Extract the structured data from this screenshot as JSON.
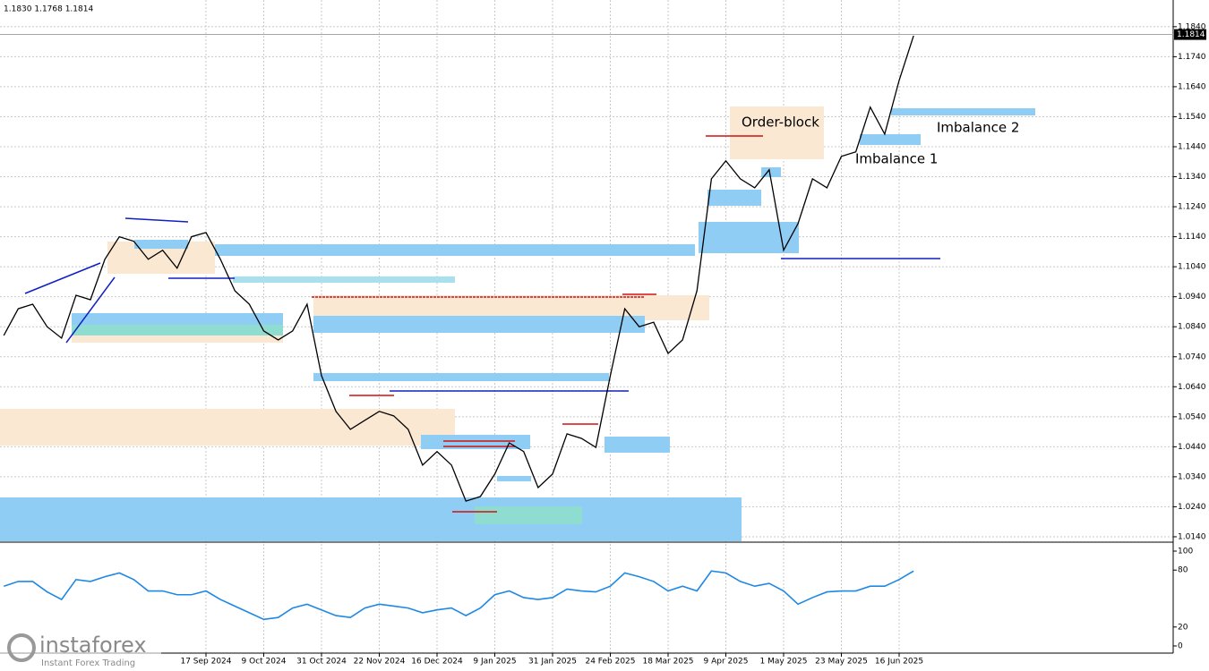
{
  "chart_data": [
    {
      "type": "line",
      "title": "1.1830 1.1768 1.1814",
      "annotations": [
        "Order-block",
        "Imbalance 1",
        "Imbalance 2"
      ],
      "watermark": "instaforex",
      "watermark_sub": "Instant Forex Trading",
      "categories": [
        null,
        null,
        null,
        null,
        null,
        null,
        null,
        null,
        null,
        null,
        null,
        null,
        null,
        null,
        "17 Sep 2024",
        null,
        null,
        null,
        "9 Oct 2024",
        null,
        null,
        null,
        "31 Oct 2024",
        null,
        null,
        null,
        "22 Nov 2024",
        null,
        null,
        null,
        "16 Dec 2024",
        null,
        null,
        null,
        "9 Jan 2025",
        null,
        null,
        null,
        "31 Jan 2025",
        null,
        null,
        null,
        "24 Feb 2025",
        null,
        null,
        null,
        "18 Mar 2025",
        null,
        null,
        null,
        "9 Apr 2025",
        null,
        null,
        null,
        "1 May 2025",
        null,
        null,
        null,
        "23 May 2025",
        null,
        null,
        null,
        "16 Jun 2025",
        null
      ],
      "values": [
        1.0811,
        1.09,
        1.0915,
        1.084,
        1.0802,
        1.0945,
        1.093,
        1.1065,
        1.114,
        1.1125,
        1.1065,
        1.1095,
        1.1035,
        1.114,
        1.1154,
        1.1065,
        1.096,
        1.0915,
        1.0826,
        1.0796,
        1.0826,
        1.0915,
        1.0677,
        1.0558,
        1.0498,
        1.0528,
        1.0558,
        1.0543,
        1.0498,
        1.0379,
        1.0424,
        1.0379,
        1.0259,
        1.0274,
        1.0349,
        1.0453,
        1.0424,
        1.0304,
        1.0349,
        1.0483,
        1.0468,
        1.0438,
        1.0677,
        1.09,
        1.084,
        1.0855,
        1.0751,
        1.0796,
        1.096,
        1.1333,
        1.1393,
        1.1333,
        1.1303,
        1.1363,
        1.1095,
        1.1184,
        1.1333,
        1.1303,
        1.1408,
        1.1423,
        1.1572,
        1.1482,
        1.1661,
        1.181
      ],
      "color": "#000000",
      "ylim": [
        1.0125,
        1.1929
      ],
      "yticks": [
        {
          "value": 1.014,
          "label": "1.0140"
        },
        {
          "value": 1.024,
          "label": "1.0240"
        },
        {
          "value": 1.034,
          "label": "1.0340"
        },
        {
          "value": 1.044,
          "label": "1.0440"
        },
        {
          "value": 1.054,
          "label": "1.0540"
        },
        {
          "value": 1.064,
          "label": "1.0640"
        },
        {
          "value": 1.074,
          "label": "1.0740"
        },
        {
          "value": 1.084,
          "label": "1.0840"
        },
        {
          "value": 1.094,
          "label": "1.0940"
        },
        {
          "value": 1.104,
          "label": "1.1040"
        },
        {
          "value": 1.114,
          "label": "1.1140"
        },
        {
          "value": 1.124,
          "label": "1.1240"
        },
        {
          "value": 1.134,
          "label": "1.1340"
        },
        {
          "value": 1.144,
          "label": "1.1440"
        },
        {
          "value": 1.154,
          "label": "1.1540"
        },
        {
          "value": 1.164,
          "label": "1.1640"
        },
        {
          "value": 1.174,
          "label": "1.1740"
        },
        {
          "value": 1.184,
          "label": "1.1840"
        }
      ],
      "last_price": {
        "value": 1.1814,
        "label": "1.1814"
      },
      "grid": true
    },
    {
      "type": "line",
      "values": [
        63,
        68,
        68,
        57,
        49,
        70,
        68,
        73,
        77,
        70,
        58,
        58,
        54,
        54,
        58,
        49,
        42,
        35,
        28,
        30,
        40,
        44,
        38,
        32,
        30,
        40,
        44,
        42,
        40,
        35,
        38,
        40,
        32,
        40,
        54,
        58,
        51,
        49,
        51,
        60,
        58,
        57,
        63,
        77,
        73,
        68,
        58,
        63,
        58,
        79,
        77,
        68,
        63,
        66,
        58,
        44,
        51,
        57,
        58,
        58,
        63,
        63,
        70,
        79
      ],
      "color": "#1e88e5",
      "ylim": [
        0,
        100
      ],
      "yticks": [
        0,
        20,
        80,
        100
      ],
      "grid": false
    }
  ]
}
